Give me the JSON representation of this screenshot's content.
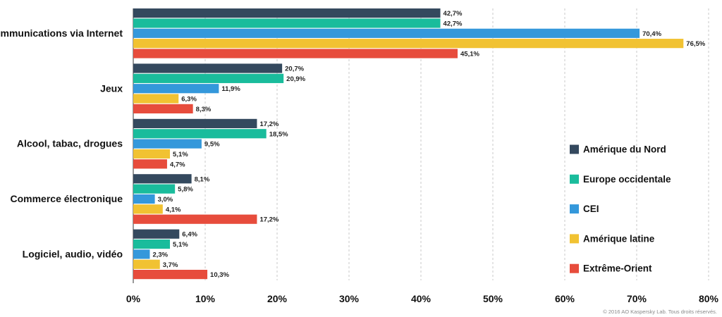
{
  "chart_data": {
    "type": "bar",
    "orientation": "horizontal",
    "categories": [
      "Communications via Internet",
      "Jeux",
      "Alcool, tabac, drogues",
      "Commerce électronique",
      "Logiciel, audio, vidéo"
    ],
    "series": [
      {
        "name": "Amérique du Nord",
        "color": "#34495e",
        "values": [
          42.7,
          20.7,
          17.2,
          8.1,
          6.4
        ],
        "labels": [
          "42,7%",
          "20,7%",
          "17,2%",
          "8,1%",
          "6,4%"
        ]
      },
      {
        "name": "Europe occidentale",
        "color": "#1abc9c",
        "values": [
          42.7,
          20.9,
          18.5,
          5.8,
          5.1
        ],
        "labels": [
          "42,7%",
          "20,9%",
          "18,5%",
          "5,8%",
          "5,1%"
        ]
      },
      {
        "name": "CEI",
        "color": "#3498db",
        "values": [
          70.4,
          11.9,
          9.5,
          3.0,
          2.3
        ],
        "labels": [
          "70,4%",
          "11,9%",
          "9,5%",
          "3,0%",
          "2,3%"
        ]
      },
      {
        "name": "Amérique latine",
        "color": "#f1c232",
        "values": [
          76.5,
          6.3,
          5.1,
          4.1,
          3.7
        ],
        "labels": [
          "76,5%",
          "6,3%",
          "5,1%",
          "4,1%",
          "3,7%"
        ]
      },
      {
        "name": "Extrême-Orient",
        "color": "#e74c3c",
        "values": [
          45.1,
          8.3,
          4.7,
          17.2,
          10.3
        ],
        "labels": [
          "45,1%",
          "8,3%",
          "4,7%",
          "17,2%",
          "10,3%"
        ]
      }
    ],
    "xlim": [
      0,
      80
    ],
    "xticks": [
      0,
      10,
      20,
      30,
      40,
      50,
      60,
      70,
      80
    ],
    "xtick_labels": [
      "0%",
      "10%",
      "20%",
      "30%",
      "40%",
      "50%",
      "60%",
      "70%",
      "80%"
    ],
    "grid": "vertical dashed",
    "legend_position": "right",
    "title": "",
    "xlabel": "",
    "ylabel": ""
  },
  "footer": {
    "copyright": "© 2016 AO Kaspersky Lab. Tous droits réservés."
  }
}
